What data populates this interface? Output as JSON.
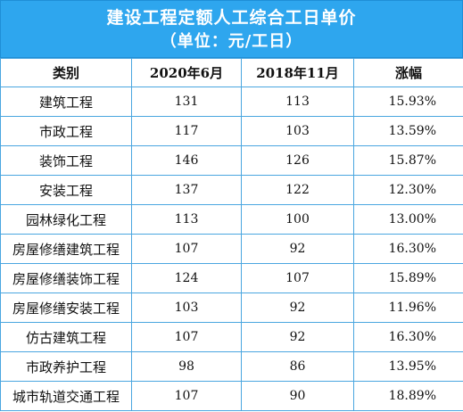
{
  "title": {
    "line1": "建设工程定额人工综合工日单价",
    "line2": "（单位：元/工日）"
  },
  "table": {
    "headers": [
      "类别",
      "2020年6月",
      "2018年11月",
      "涨幅"
    ],
    "rows": [
      [
        "建筑工程",
        "131",
        "113",
        "15.93%"
      ],
      [
        "市政工程",
        "117",
        "103",
        "13.59%"
      ],
      [
        "装饰工程",
        "146",
        "126",
        "15.87%"
      ],
      [
        "安装工程",
        "137",
        "122",
        "12.30%"
      ],
      [
        "园林绿化工程",
        "113",
        "100",
        "13.00%"
      ],
      [
        "房屋修缮建筑工程",
        "107",
        "92",
        "16.30%"
      ],
      [
        "房屋修缮装饰工程",
        "124",
        "107",
        "15.89%"
      ],
      [
        "房屋修缮安装工程",
        "103",
        "92",
        "11.96%"
      ],
      [
        "仿古建筑工程",
        "107",
        "92",
        "16.30%"
      ],
      [
        "市政养护工程",
        "98",
        "86",
        "13.95%"
      ],
      [
        "城市轨道交通工程",
        "107",
        "90",
        "18.89%"
      ]
    ]
  },
  "colors": {
    "header_bg": "#2ea6ee",
    "grid_line": "#4aa6e0"
  }
}
